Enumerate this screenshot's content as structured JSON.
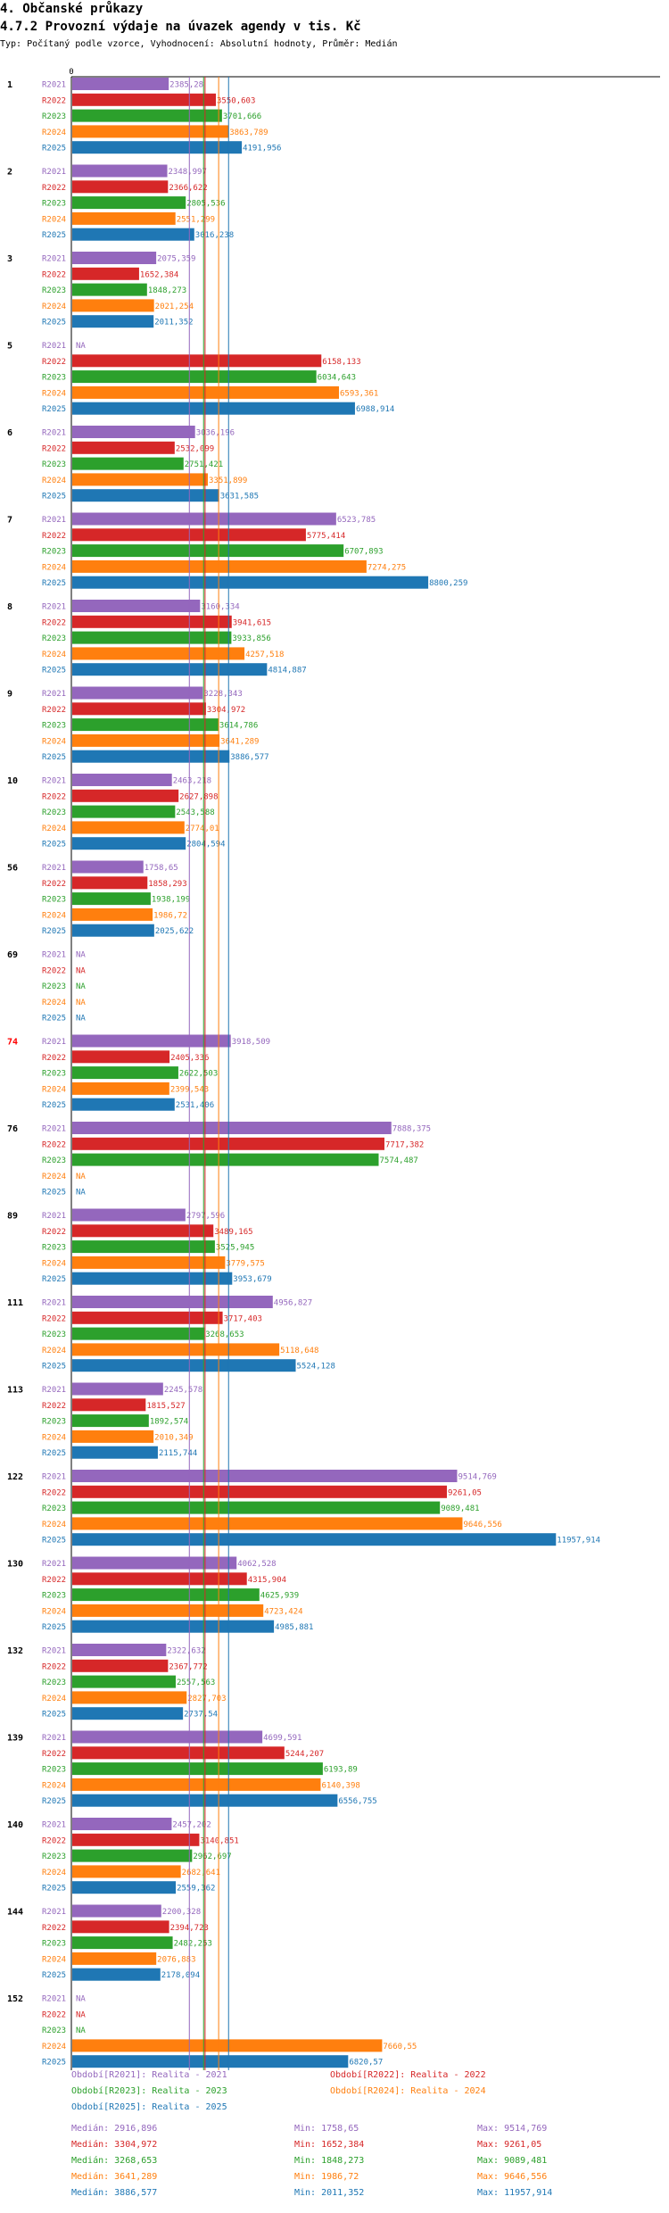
{
  "header": {
    "title": "4. Občanské průkazy",
    "subtitle": "4.7.2 Provozní výdaje na úvazek agendy v tis. Kč",
    "config": "Typ: Počítaný podle vzorce, Vyhodnocení: Absolutní hodnoty, Průměr: Medián"
  },
  "colors": {
    "R2021": "#9467bd",
    "R2022": "#d62728",
    "R2023": "#2ca02c",
    "R2024": "#ff7f0e",
    "R2025": "#1f77b4",
    "highlight": "#ff0000"
  },
  "chart_data": {
    "type": "bar",
    "orientation": "horizontal",
    "x_axis_zero_label": "0",
    "xlim": [
      0,
      11957.914
    ],
    "series_names": [
      "R2021",
      "R2022",
      "R2023",
      "R2024",
      "R2025"
    ],
    "na_label": "NA",
    "groups": [
      {
        "label": "1",
        "values": [
          2385.28,
          3550.603,
          3701.666,
          3863.789,
          4191.956
        ]
      },
      {
        "label": "2",
        "values": [
          2348.997,
          2366.622,
          2805.536,
          2551.299,
          3016.238
        ]
      },
      {
        "label": "3",
        "values": [
          2075.359,
          1652.384,
          1848.273,
          2021.254,
          2011.352
        ]
      },
      {
        "label": "5",
        "values": [
          null,
          6158.133,
          6034.643,
          6593.361,
          6988.914
        ]
      },
      {
        "label": "6",
        "values": [
          3036.196,
          2532.099,
          2751.421,
          3351.899,
          3631.585
        ]
      },
      {
        "label": "7",
        "values": [
          6523.785,
          5775.414,
          6707.893,
          7274.275,
          8800.259
        ]
      },
      {
        "label": "8",
        "values": [
          3160.334,
          3941.615,
          3933.856,
          4257.518,
          4814.887
        ]
      },
      {
        "label": "9",
        "values": [
          3228.343,
          3304.972,
          3614.786,
          3641.289,
          3886.577
        ]
      },
      {
        "label": "10",
        "values": [
          2463.218,
          2627.898,
          2543.588,
          2774.01,
          2804.594
        ]
      },
      {
        "label": "56",
        "values": [
          1758.65,
          1858.293,
          1938.199,
          1986.72,
          2025.622
        ]
      },
      {
        "label": "69",
        "values": [
          null,
          null,
          null,
          null,
          null
        ]
      },
      {
        "label": "74",
        "highlight": true,
        "values": [
          3918.509,
          2405.336,
          2622.503,
          2399.543,
          2531.406
        ]
      },
      {
        "label": "76",
        "values": [
          7888.375,
          7717.382,
          7574.487,
          null,
          null
        ]
      },
      {
        "label": "89",
        "values": [
          2797.596,
          3489.165,
          3525.945,
          3779.575,
          3953.679
        ]
      },
      {
        "label": "111",
        "values": [
          4956.827,
          3717.403,
          3268.653,
          5118.648,
          5524.128
        ]
      },
      {
        "label": "113",
        "values": [
          2245.578,
          1815.527,
          1892.574,
          2010.349,
          2115.744
        ]
      },
      {
        "label": "122",
        "values": [
          9514.769,
          9261.05,
          9089.481,
          9646.556,
          11957.914
        ]
      },
      {
        "label": "130",
        "values": [
          4062.528,
          4315.904,
          4625.939,
          4723.424,
          4985.881
        ]
      },
      {
        "label": "132",
        "values": [
          2322.632,
          2367.772,
          2557.563,
          2827.703,
          2737.54
        ]
      },
      {
        "label": "139",
        "values": [
          4699.591,
          5244.207,
          6193.89,
          6140.398,
          6556.755
        ]
      },
      {
        "label": "140",
        "values": [
          2457.202,
          3140.851,
          2962.697,
          2682.641,
          2559.362
        ]
      },
      {
        "label": "144",
        "values": [
          2200.328,
          2394.723,
          2482.253,
          2076.883,
          2178.094
        ]
      },
      {
        "label": "152",
        "values": [
          null,
          null,
          null,
          7660.55,
          6820.57
        ]
      }
    ],
    "medians": [
      2916.896,
      3304.972,
      3268.653,
      3641.289,
      3886.577
    ]
  },
  "legend": {
    "series": [
      {
        "key": "R2021",
        "label": "Období[R2021]: Realita - 2021"
      },
      {
        "key": "R2022",
        "label": "Období[R2022]: Realita - 2022"
      },
      {
        "key": "R2023",
        "label": "Období[R2023]: Realita - 2023"
      },
      {
        "key": "R2024",
        "label": "Období[R2024]: Realita - 2024"
      },
      {
        "key": "R2025",
        "label": "Období[R2025]: Realita - 2025"
      }
    ],
    "stats": [
      {
        "key": "R2021",
        "median": "Medián: 2916,896",
        "min": "Min: 1758,65",
        "max": "Max: 9514,769"
      },
      {
        "key": "R2022",
        "median": "Medián: 3304,972",
        "min": "Min: 1652,384",
        "max": "Max: 9261,05"
      },
      {
        "key": "R2023",
        "median": "Medián: 3268,653",
        "min": "Min: 1848,273",
        "max": "Max: 9089,481"
      },
      {
        "key": "R2024",
        "median": "Medián: 3641,289",
        "min": "Min: 1986,72",
        "max": "Max: 9646,556"
      },
      {
        "key": "R2025",
        "median": "Medián: 3886,577",
        "min": "Min: 2011,352",
        "max": "Max: 11957,914"
      }
    ]
  }
}
